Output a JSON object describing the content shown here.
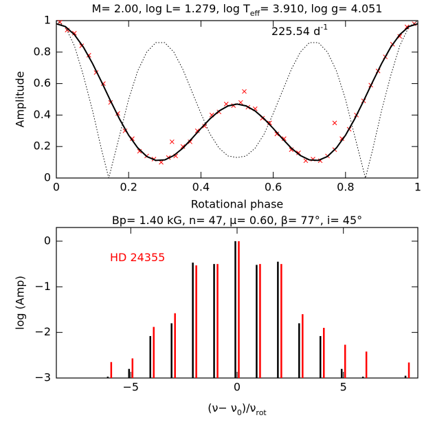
{
  "chart_data": [
    {
      "type": "line",
      "title_parts": [
        {
          "text": "M= 2.00, log L= 1.279, log T"
        },
        {
          "text": "eff",
          "shift": "sub"
        },
        {
          "text": "= 3.910, log g= 4.051"
        }
      ],
      "annotation_parts": [
        {
          "text": "225.54 d"
        },
        {
          "text": "-1",
          "shift": "super"
        }
      ],
      "xlabel": "Rotational phase",
      "ylabel": "Amplitude",
      "xlim": [
        0,
        1
      ],
      "xticks": [
        0,
        0.2,
        0.4,
        0.6,
        0.8,
        1
      ],
      "ylim": [
        0,
        1
      ],
      "yticks": [
        0,
        0.2,
        0.4,
        0.6,
        0.8,
        1
      ],
      "series": [
        {
          "style": "markers",
          "color": "#ff0000",
          "x": [
            0.01,
            0.03,
            0.05,
            0.07,
            0.09,
            0.11,
            0.13,
            0.15,
            0.17,
            0.19,
            0.21,
            0.23,
            0.25,
            0.27,
            0.29,
            0.31,
            0.33,
            0.35,
            0.37,
            0.39,
            0.41,
            0.43,
            0.45,
            0.47,
            0.49,
            0.51,
            0.53,
            0.55,
            0.57,
            0.59,
            0.61,
            0.63,
            0.65,
            0.67,
            0.69,
            0.71,
            0.73,
            0.75,
            0.77,
            0.79,
            0.81,
            0.83,
            0.85,
            0.87,
            0.89,
            0.91,
            0.93,
            0.95,
            0.97,
            0.99,
            0.32,
            0.77,
            0.52
          ],
          "values": [
            0.99,
            0.94,
            0.92,
            0.84,
            0.78,
            0.67,
            0.6,
            0.48,
            0.41,
            0.3,
            0.25,
            0.17,
            0.14,
            0.12,
            0.1,
            0.13,
            0.14,
            0.2,
            0.23,
            0.3,
            0.33,
            0.4,
            0.42,
            0.47,
            0.46,
            0.48,
            0.45,
            0.44,
            0.38,
            0.35,
            0.28,
            0.25,
            0.18,
            0.16,
            0.11,
            0.12,
            0.11,
            0.14,
            0.18,
            0.25,
            0.31,
            0.4,
            0.49,
            0.59,
            0.68,
            0.77,
            0.85,
            0.9,
            0.96,
            0.98,
            0.23,
            0.35,
            0.55
          ]
        },
        {
          "style": "solid",
          "color": "#000000",
          "x": [
            0,
            0.025,
            0.05,
            0.075,
            0.1,
            0.125,
            0.15,
            0.175,
            0.2,
            0.225,
            0.25,
            0.275,
            0.3,
            0.325,
            0.35,
            0.375,
            0.4,
            0.425,
            0.45,
            0.475,
            0.5,
            0.525,
            0.55,
            0.575,
            0.6,
            0.625,
            0.65,
            0.675,
            0.7,
            0.725,
            0.75,
            0.775,
            0.8,
            0.825,
            0.85,
            0.875,
            0.9,
            0.925,
            0.95,
            0.975,
            1
          ],
          "values": [
            0.98,
            0.962,
            0.911,
            0.831,
            0.728,
            0.611,
            0.49,
            0.374,
            0.272,
            0.192,
            0.137,
            0.112,
            0.115,
            0.143,
            0.19,
            0.251,
            0.315,
            0.376,
            0.426,
            0.458,
            0.47,
            0.458,
            0.426,
            0.376,
            0.315,
            0.251,
            0.19,
            0.143,
            0.115,
            0.112,
            0.137,
            0.192,
            0.272,
            0.374,
            0.49,
            0.611,
            0.728,
            0.831,
            0.911,
            0.962,
            0.98
          ]
        },
        {
          "style": "dotted",
          "color": "#000000",
          "x": [
            0,
            0.025,
            0.05,
            0.075,
            0.1,
            0.125,
            0.145,
            0.175,
            0.2,
            0.225,
            0.25,
            0.275,
            0.3,
            0.325,
            0.35,
            0.375,
            0.4,
            0.425,
            0.45,
            0.475,
            0.5,
            0.525,
            0.55,
            0.575,
            0.6,
            0.625,
            0.65,
            0.675,
            0.7,
            0.725,
            0.75,
            0.775,
            0.8,
            0.825,
            0.855,
            0.875,
            0.9,
            0.925,
            0.95,
            0.975,
            1
          ],
          "values": [
            1,
            0.96,
            0.84,
            0.65,
            0.43,
            0.18,
            0,
            0.27,
            0.5,
            0.68,
            0.8,
            0.86,
            0.86,
            0.8,
            0.69,
            0.55,
            0.41,
            0.28,
            0.19,
            0.14,
            0.13,
            0.14,
            0.19,
            0.28,
            0.41,
            0.55,
            0.69,
            0.8,
            0.86,
            0.86,
            0.8,
            0.68,
            0.5,
            0.27,
            0,
            0.18,
            0.43,
            0.65,
            0.84,
            0.96,
            1
          ]
        }
      ]
    },
    {
      "type": "bar",
      "title_parts": [
        {
          "text": "Bp= 1.40 kG,  n= 47,  μ= 0.60, β= 77°, i= 45°"
        }
      ],
      "annotation_parts": [
        {
          "text": "HD 24355"
        }
      ],
      "annotation_color": "#ff0000",
      "xlabel_parts": [
        {
          "text": "(ν− ν"
        },
        {
          "text": "0",
          "shift": "sub"
        },
        {
          "text": ")/ν"
        },
        {
          "text": "rot",
          "shift": "sub"
        }
      ],
      "ylabel": "log (Amp)",
      "xlim": [
        -8.5,
        8.5
      ],
      "xticks": [
        {
          "value": -5,
          "label": "−5"
        },
        0,
        5
      ],
      "ylim": [
        -3,
        0.3
      ],
      "yticks": [
        0,
        {
          "value": -1,
          "label": "−1"
        },
        {
          "value": -2,
          "label": "−2"
        },
        {
          "value": -3,
          "label": "−3"
        }
      ],
      "series": [
        {
          "color": "#000000",
          "x": [
            -6,
            -5,
            -4,
            -3,
            -2,
            -1,
            0,
            1,
            2,
            3,
            4,
            5,
            6,
            8
          ],
          "values": [
            -2.97,
            -2.8,
            -2.08,
            -1.8,
            -0.47,
            -0.5,
            0,
            -0.52,
            -0.45,
            -1.8,
            -2.08,
            -2.8,
            -2.97,
            -2.95
          ]
        },
        {
          "color": "#ff0000",
          "x": [
            -6,
            -5,
            -4,
            -3,
            -2,
            -1,
            0,
            1,
            2,
            3,
            4,
            5,
            6,
            8
          ],
          "values": [
            -2.65,
            -2.57,
            -1.88,
            -1.58,
            -0.53,
            -0.5,
            0,
            -0.5,
            -0.5,
            -1.6,
            -1.9,
            -2.27,
            -2.42,
            -2.66
          ]
        }
      ]
    }
  ]
}
